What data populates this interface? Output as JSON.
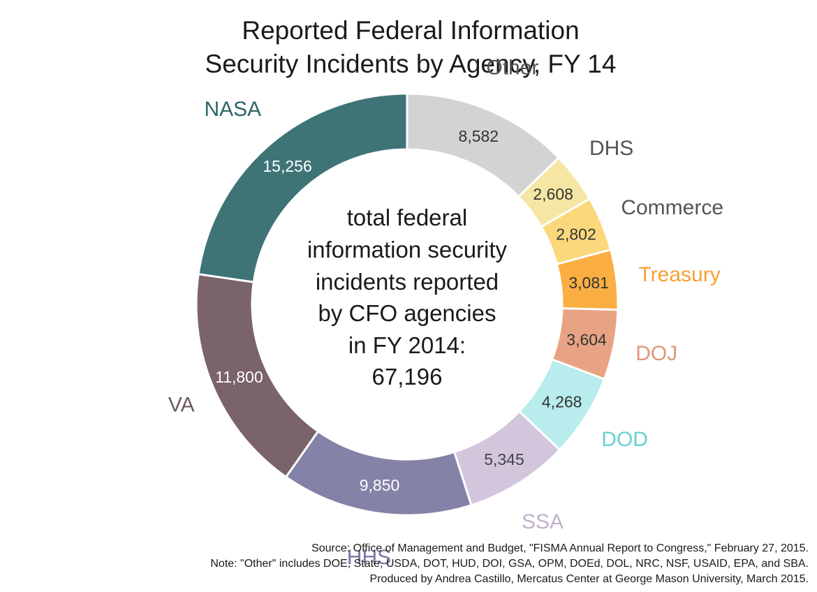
{
  "chart_data": {
    "type": "pie",
    "title": "Reported Federal Information Security Incidents by Agency, FY 14",
    "title_lines": [
      "Reported Federal Information",
      "Security Incidents by Agency, FY 14"
    ],
    "center_text": [
      "total federal",
      "information security",
      "incidents reported",
      "by CFO agencies",
      "in FY 2014:",
      "67,196"
    ],
    "slices": [
      {
        "label": "Other",
        "value": 8582,
        "value_label": "8,582",
        "color": "#d3d3d3",
        "label_color": "#555555",
        "value_color": "#333333"
      },
      {
        "label": "DHS",
        "value": 2608,
        "value_label": "2,608",
        "color": "#f5e6a4",
        "label_color": "#555555",
        "value_color": "#333333"
      },
      {
        "label": "Commerce",
        "value": 2802,
        "value_label": "2,802",
        "color": "#fbd87c",
        "label_color": "#555555",
        "value_color": "#333333"
      },
      {
        "label": "Treasury",
        "value": 3081,
        "value_label": "3,081",
        "color": "#fbae42",
        "label_color": "#f8a032",
        "value_color": "#333333"
      },
      {
        "label": "DOJ",
        "value": 3604,
        "value_label": "3,604",
        "color": "#e8a384",
        "label_color": "#e0967a",
        "value_color": "#333333"
      },
      {
        "label": "DOD",
        "value": 4268,
        "value_label": "4,268",
        "color": "#b9ecec",
        "label_color": "#66d1d1",
        "value_color": "#333333"
      },
      {
        "label": "SSA",
        "value": 5345,
        "value_label": "5,345",
        "color": "#d3c6dc",
        "label_color": "#c0b3cc",
        "value_color": "#444444"
      },
      {
        "label": "HHS",
        "value": 9850,
        "value_label": "9,850",
        "color": "#8582a8",
        "label_color": "#7b77a3",
        "value_color": "#ffffff"
      },
      {
        "label": "VA",
        "value": 11800,
        "value_label": "11,800",
        "color": "#7b636c",
        "label_color": "#6e5a62",
        "value_color": "#ffffff"
      },
      {
        "label": "NASA",
        "value": 15256,
        "value_label": "15,256",
        "color": "#3f7477",
        "label_color": "#2e6467",
        "value_color": "#ffffff"
      }
    ],
    "start_angle_deg": 0,
    "direction": "clockwise"
  },
  "notes": [
    "Source: Office of Management and Budget, \"FISMA Annual Report to Congress,\" February 27, 2015.",
    "Note: \"Other\" includes DOE, State, USDA, DOT, HUD, DOI, GSA, OPM, DOEd, DOL, NRC, NSF, USAID, EPA, and SBA.",
    "Produced by Andrea Castillo, Mercatus Center at George Mason University, March 2015."
  ]
}
